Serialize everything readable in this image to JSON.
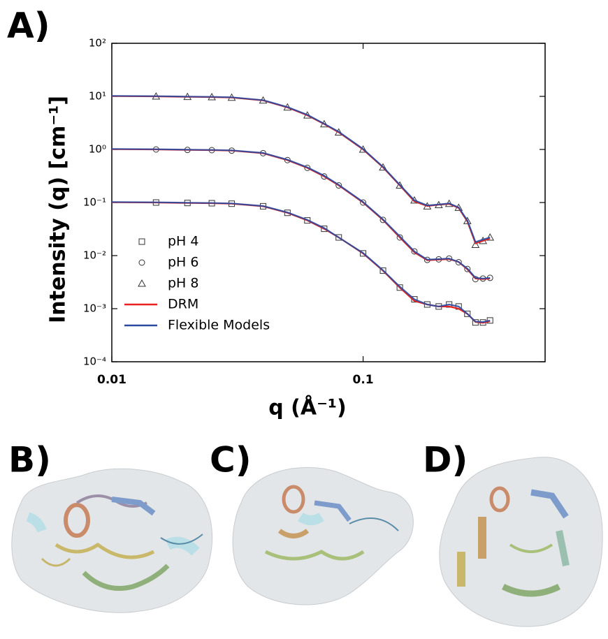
{
  "panel_labels": [
    "A)",
    "B)",
    "C)",
    "D)"
  ],
  "chart_data": {
    "type": "scatter",
    "xlabel": "q (Å⁻¹)",
    "ylabel": "Intensity (q) [cm⁻¹]",
    "xscale": "log",
    "yscale": "log",
    "xlim": [
      0.01,
      0.53
    ],
    "ylim": [
      0.0001,
      100
    ],
    "xticks": [
      0.01,
      0.1
    ],
    "yticks": [
      {
        "value": 0.0001,
        "label": "10⁻⁴"
      },
      {
        "value": 0.001,
        "label": "10⁻³"
      },
      {
        "value": 0.01,
        "label": "10⁻²"
      },
      {
        "value": 0.1,
        "label": "10⁻¹"
      },
      {
        "value": 1,
        "label": "10⁰"
      },
      {
        "value": 10,
        "label": "10¹"
      },
      {
        "value": 100,
        "label": "10²"
      }
    ],
    "legend": "center left",
    "series": [
      {
        "name": "pH 4",
        "color": "#333333",
        "marker": "square",
        "x": [
          0.015,
          0.02,
          0.025,
          0.03,
          0.04,
          0.05,
          0.06,
          0.07,
          0.08,
          0.1,
          0.12,
          0.14,
          0.16,
          0.18,
          0.2,
          0.22,
          0.24,
          0.26,
          0.28,
          0.3,
          0.32
        ],
        "values": [
          0.1,
          0.098,
          0.097,
          0.095,
          0.085,
          0.064,
          0.046,
          0.032,
          0.022,
          0.011,
          0.0052,
          0.0025,
          0.0015,
          0.0012,
          0.0011,
          0.0012,
          0.0011,
          0.0008,
          0.00055,
          0.00055,
          0.0006
        ]
      },
      {
        "name": "pH 6",
        "color": "#333333",
        "marker": "circle",
        "x": [
          0.015,
          0.02,
          0.025,
          0.03,
          0.04,
          0.05,
          0.06,
          0.07,
          0.08,
          0.1,
          0.12,
          0.14,
          0.16,
          0.18,
          0.2,
          0.22,
          0.24,
          0.26,
          0.28,
          0.3,
          0.32
        ],
        "values": [
          1.0,
          0.98,
          0.97,
          0.95,
          0.85,
          0.63,
          0.45,
          0.31,
          0.21,
          0.1,
          0.047,
          0.022,
          0.012,
          0.0083,
          0.0085,
          0.0088,
          0.0075,
          0.0056,
          0.0036,
          0.0037,
          0.0038
        ]
      },
      {
        "name": "pH 8",
        "color": "#333333",
        "marker": "triangle",
        "x": [
          0.015,
          0.02,
          0.025,
          0.03,
          0.04,
          0.05,
          0.06,
          0.07,
          0.08,
          0.1,
          0.12,
          0.14,
          0.16,
          0.18,
          0.2,
          0.22,
          0.24,
          0.26,
          0.28,
          0.3,
          0.32
        ],
        "values": [
          10,
          9.8,
          9.7,
          9.5,
          8.4,
          6.2,
          4.4,
          3.0,
          2.1,
          1.0,
          0.46,
          0.21,
          0.11,
          0.085,
          0.09,
          0.095,
          0.08,
          0.045,
          0.016,
          0.019,
          0.022
        ]
      },
      {
        "name": "DRM",
        "color": "#e8231f",
        "style": "line",
        "x": [
          0.01,
          0.015,
          0.02,
          0.025,
          0.03,
          0.04,
          0.05,
          0.06,
          0.07,
          0.08,
          0.1,
          0.12,
          0.14,
          0.16,
          0.18,
          0.2,
          0.22,
          0.24,
          0.26,
          0.28,
          0.3,
          0.32
        ],
        "curves": [
          [
            0.101,
            0.1,
            0.098,
            0.097,
            0.095,
            0.085,
            0.064,
            0.046,
            0.032,
            0.022,
            0.011,
            0.0052,
            0.0025,
            0.0014,
            0.0012,
            0.0011,
            0.0011,
            0.001,
            0.0008,
            0.00056,
            0.00054,
            0.00058
          ],
          [
            1.01,
            1.0,
            0.98,
            0.97,
            0.95,
            0.85,
            0.63,
            0.45,
            0.31,
            0.21,
            0.1,
            0.047,
            0.022,
            0.0115,
            0.0082,
            0.0084,
            0.0086,
            0.0076,
            0.0055,
            0.0037,
            0.0036,
            0.0037
          ],
          [
            10.1,
            10,
            9.8,
            9.7,
            9.5,
            8.4,
            6.2,
            4.4,
            3.0,
            2.1,
            1.0,
            0.46,
            0.21,
            0.105,
            0.086,
            0.091,
            0.094,
            0.079,
            0.044,
            0.017,
            0.019,
            0.021
          ]
        ]
      },
      {
        "name": "Flexible Models",
        "color": "#2b4aa0",
        "style": "line",
        "x": [
          0.01,
          0.015,
          0.02,
          0.025,
          0.03,
          0.04,
          0.05,
          0.06,
          0.07,
          0.08,
          0.1,
          0.12,
          0.14,
          0.16,
          0.18,
          0.2,
          0.22,
          0.24,
          0.26,
          0.28,
          0.3,
          0.32
        ],
        "curves": [
          [
            0.102,
            0.101,
            0.099,
            0.098,
            0.096,
            0.086,
            0.065,
            0.047,
            0.033,
            0.022,
            0.0112,
            0.0053,
            0.0026,
            0.0015,
            0.0012,
            0.0011,
            0.0012,
            0.0011,
            0.0008,
            0.00057,
            0.00056,
            0.0006
          ],
          [
            1.02,
            1.01,
            0.99,
            0.98,
            0.96,
            0.86,
            0.64,
            0.46,
            0.32,
            0.215,
            0.102,
            0.048,
            0.023,
            0.012,
            0.0084,
            0.0086,
            0.0088,
            0.0076,
            0.0057,
            0.0038,
            0.0037,
            0.0038
          ],
          [
            10.2,
            10.1,
            9.9,
            9.8,
            9.6,
            8.5,
            6.3,
            4.5,
            3.05,
            2.15,
            1.02,
            0.47,
            0.215,
            0.11,
            0.088,
            0.092,
            0.096,
            0.081,
            0.046,
            0.018,
            0.02,
            0.022
          ]
        ]
      }
    ]
  }
}
